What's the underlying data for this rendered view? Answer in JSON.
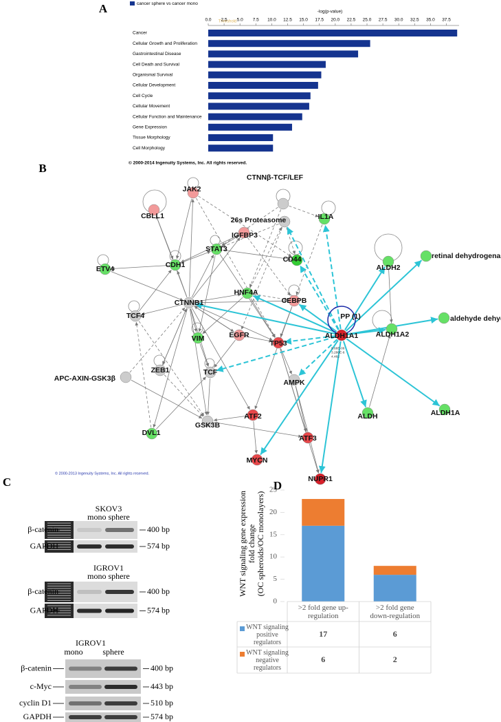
{
  "panel_labels": [
    "A",
    "B",
    "C",
    "D"
  ],
  "chart_data": [
    {
      "type": "bar",
      "orientation": "horizontal",
      "xlabel": "-log(p-value)",
      "annotations": [
        "Threshold"
      ],
      "footer": "© 2000-2014 Ingenuity Systems, Inc. All rights reserved.",
      "categories": [
        "Cancer",
        "Cellular Growth and Proliferation",
        "Gastrointestinal Disease",
        "Cell Death and Survival",
        "Organismal Survival",
        "Cellular Development",
        "Cell Cycle",
        "Cellular Movement",
        "Cellular Function and Maintenance",
        "Gene Expression",
        "Tissue Morphology",
        "Cell Morphology"
      ],
      "series": [
        {
          "name": "cancer sphere vs cancer mono",
          "color": "#15348f",
          "values": [
            39.2,
            25.5,
            23.6,
            18.5,
            17.8,
            17.3,
            16.1,
            15.9,
            14.8,
            13.2,
            10.2,
            10.2
          ]
        }
      ],
      "xlim": [
        0,
        39.5
      ],
      "xticks": [
        {
          "value": 0,
          "label": "0.0"
        },
        2.5,
        {
          "value": 5,
          "label": "5.0"
        },
        7.5,
        {
          "value": 10,
          "label": "10.0"
        },
        12.5,
        {
          "value": 15,
          "label": "15.0"
        },
        17.5,
        {
          "value": 20,
          "label": "20.0"
        },
        22.5,
        {
          "value": 25,
          "label": "25.0"
        },
        27.5,
        {
          "value": 30,
          "label": "30.0"
        },
        32.5,
        {
          "value": 35,
          "label": "35.0"
        },
        37.5
      ]
    },
    {
      "type": "bar",
      "stacked": true,
      "ylabel": [
        "WNT signaling gene expression",
        "fold change",
        "(OC spheroids/OC monolayers)"
      ],
      "categories": [
        ">2 fold gene up-regulation",
        ">2 fold gene down-regulation"
      ],
      "series": [
        {
          "name": "WNT signaling positive regulators",
          "color": "#5b9bd5",
          "values": [
            17,
            6
          ]
        },
        {
          "name": "WNT signaling negative regulators",
          "color": "#ed7d31",
          "values": [
            6,
            2
          ]
        }
      ],
      "ylim": [
        0,
        25
      ],
      "yticks": [
        0,
        5,
        10,
        15,
        20,
        25
      ]
    }
  ],
  "network": {
    "nodes": [
      {
        "label": "CTNNβ-TCF/LEF",
        "color": "#cccccc"
      },
      {
        "label": "CBLL1",
        "color": "#f29a9a"
      },
      {
        "label": "JAK2",
        "color": "#f29a9a"
      },
      {
        "label": "26s Proteasome",
        "color": "#cccccc"
      },
      {
        "label": "IL1A",
        "color": "#66e066"
      },
      {
        "label": "IGFBP3",
        "color": "#f29a9a"
      },
      {
        "label": "STAT3",
        "color": "#66e066"
      },
      {
        "label": "CD44",
        "color": "#33cc33"
      },
      {
        "label": "ALDH2",
        "color": "#66e066"
      },
      {
        "label": "retinal dehydrogenase",
        "color": "#66e066"
      },
      {
        "label": "CDH1",
        "color": "#66e066"
      },
      {
        "label": "ETV4",
        "color": "#66e066"
      },
      {
        "label": "HNF4A",
        "color": "#66e066"
      },
      {
        "label": "CTNNB1",
        "color": "#cccccc"
      },
      {
        "label": "CEBPB",
        "color": "#f29a9a"
      },
      {
        "label": "PP (1)",
        "color": "#1a2aa8"
      },
      {
        "label": "ALDH1A1",
        "color": "#d6202a"
      },
      {
        "label": "aldehyde dehydrogenase (NAD)",
        "color": "#66e066"
      },
      {
        "label": "ALDH1A2",
        "color": "#66e066"
      },
      {
        "label": "TCF4",
        "color": "#cccccc"
      },
      {
        "label": "VIM",
        "color": "#66e066"
      },
      {
        "label": "EGFR",
        "color": "#f29a9a"
      },
      {
        "label": "TP53",
        "color": "#e8474a"
      },
      {
        "label": "ZEB1",
        "color": "#cccccc"
      },
      {
        "label": "TCF",
        "color": "#cccccc"
      },
      {
        "label": "APC-AXIN-GSK3β",
        "color": "#cccccc"
      },
      {
        "label": "AMPK",
        "color": "#cccccc"
      },
      {
        "label": "ALDH",
        "color": "#66e066"
      },
      {
        "label": "ALDH1A",
        "color": "#66e066"
      },
      {
        "label": "ATF2",
        "color": "#e8474a"
      },
      {
        "label": "GSK3B",
        "color": "#cccccc"
      },
      {
        "label": "DVL1",
        "color": "#66e066"
      },
      {
        "label": "ATF3",
        "color": "#e8474a"
      },
      {
        "label": "MYCN",
        "color": "#e8474a"
      },
      {
        "label": "NUPR1",
        "color": "#d6202a"
      }
    ],
    "annotations": [
      "9.68E-06",
      "3.280E-6",
      "4.482"
    ],
    "copyright": "© 2000-2013 Ingenuity Systems, Inc. All rights reserved."
  },
  "gels": [
    {
      "cell_line": "SKOV3",
      "lanes": [
        "mono sphere"
      ],
      "rows": [
        {
          "label": "β-catenin",
          "size": "400 bp"
        },
        {
          "label": "GAPDH",
          "size": "574 bp"
        }
      ]
    },
    {
      "cell_line": "IGROV1",
      "lanes": [
        "mono sphere"
      ],
      "rows": [
        {
          "label": "β-catenin",
          "size": "400 bp"
        },
        {
          "label": "GAPDH",
          "size": "574 bp"
        }
      ]
    },
    {
      "cell_line": "IGROV1",
      "lanes": [
        "mono",
        "sphere"
      ],
      "rows": [
        {
          "label": "β-catenin",
          "size": "400 bp"
        },
        {
          "label": "c-Myc",
          "size": "443 bp"
        },
        {
          "label": "cyclin D1",
          "size": "510 bp"
        },
        {
          "label": "GAPDH",
          "size": "574 bp"
        }
      ]
    }
  ]
}
